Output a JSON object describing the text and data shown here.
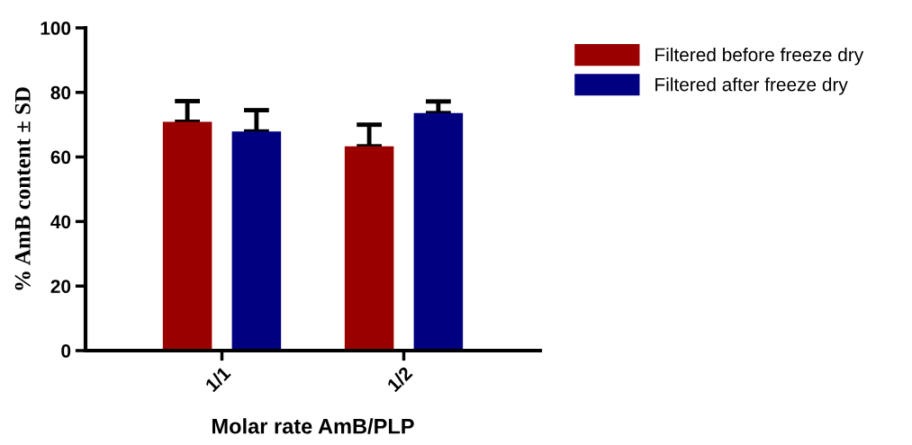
{
  "chart_data": {
    "type": "bar",
    "xlabel": "Molar rate AmB/PLP",
    "ylabel": "% AmB content ± SD",
    "categories": [
      "1/1",
      "1/2"
    ],
    "series": [
      {
        "name": "Filtered before freeze dry",
        "color": "#9b0000",
        "values": [
          70.9,
          63.3
        ],
        "errors": [
          [
            70.9,
            77.3
          ],
          [
            63.3,
            70.0
          ]
        ]
      },
      {
        "name": "Filtered after freeze dry",
        "color": "#000080",
        "values": [
          67.9,
          73.6
        ],
        "errors": [
          [
            67.9,
            74.5
          ],
          [
            73.6,
            77.2
          ]
        ]
      }
    ],
    "ylim": [
      0,
      100
    ],
    "yticks": [
      0,
      20,
      40,
      60,
      80,
      100
    ],
    "grid": false,
    "legend": "top right"
  }
}
